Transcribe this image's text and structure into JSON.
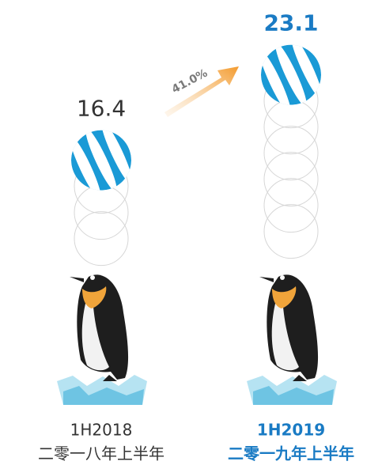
{
  "chart_data": {
    "type": "pictorial",
    "categories": [
      "1H2018",
      "1H2019"
    ],
    "category_subtitles": [
      "二零一八年上半年",
      "二零一九年上半年"
    ],
    "values": [
      16.4,
      23.1
    ],
    "annotation": "41.0%",
    "colors": [
      "#333333",
      "#1a7bc4"
    ]
  }
}
